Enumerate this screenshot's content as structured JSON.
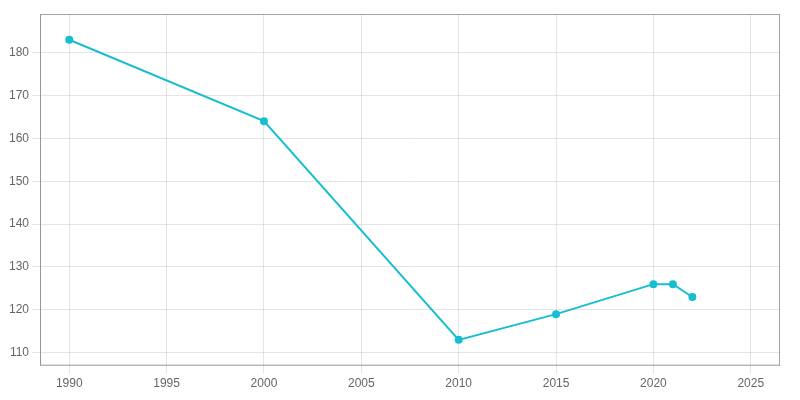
{
  "chart_data": {
    "type": "line",
    "x": [
      1990,
      2000,
      2010,
      2015,
      2020,
      2021,
      2022
    ],
    "values": [
      183,
      164,
      113,
      119,
      126,
      126,
      123
    ],
    "color": "#17BECF",
    "marker": "circle",
    "xlim": [
      1988.5,
      2026.5
    ],
    "ylim": [
      107,
      189
    ],
    "xticks": [
      1990,
      1995,
      2000,
      2005,
      2010,
      2015,
      2020,
      2025
    ],
    "yticks": [
      110,
      120,
      130,
      140,
      150,
      160,
      170,
      180
    ],
    "grid": true
  }
}
